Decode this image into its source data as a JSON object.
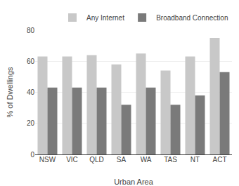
{
  "chart_data": {
    "type": "bar",
    "categories": [
      "NSW",
      "VIC",
      "QLD",
      "SA",
      "WA",
      "TAS",
      "NT",
      "ACT"
    ],
    "series": [
      {
        "name": "Any Internet",
        "color": "#c8c8c8",
        "values": [
          63,
          63,
          64,
          58,
          65,
          54,
          63,
          75
        ]
      },
      {
        "name": "Broadband Connection",
        "color": "#7a7a7a",
        "values": [
          43,
          43,
          43,
          32,
          43,
          32,
          38,
          53
        ]
      }
    ],
    "xlabel": "Urban Area",
    "ylabel": "% of Dwellings",
    "ylim": [
      0,
      80
    ],
    "yticks": [
      0,
      20,
      40,
      60,
      80
    ],
    "grid": true,
    "legend": "upper right"
  }
}
